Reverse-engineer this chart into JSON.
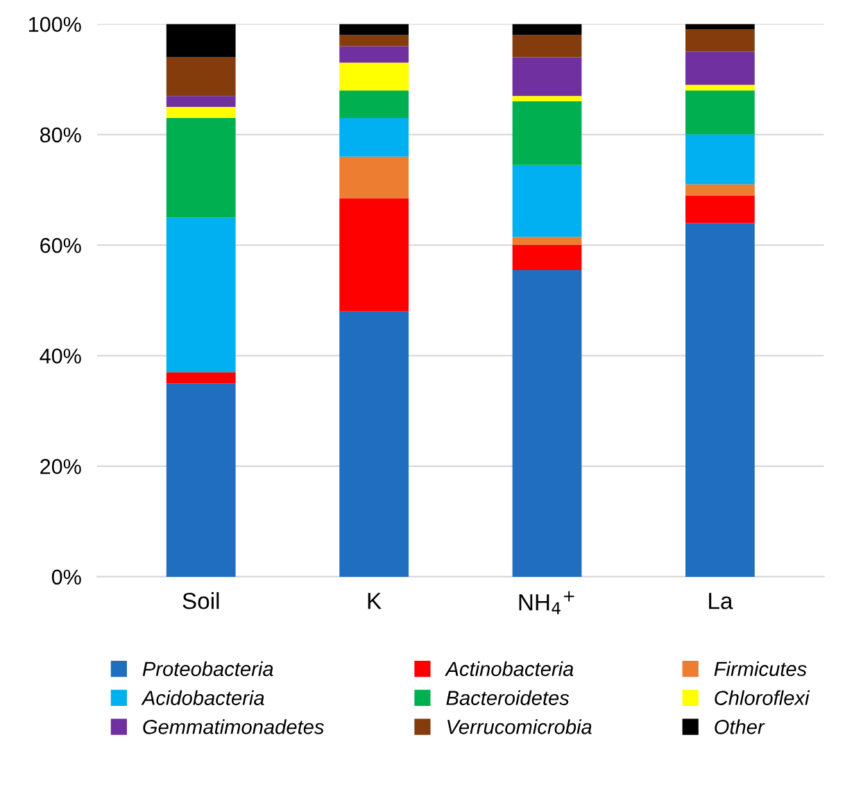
{
  "chart_data": {
    "type": "bar",
    "stacked": true,
    "categories": [
      "Soil",
      "K",
      "NH$_{4}$$^{+}$",
      "La"
    ],
    "series": [
      {
        "name": "Proteobacteria",
        "color": "#1f6ebf",
        "values": [
          35,
          48,
          55.5,
          64
        ]
      },
      {
        "name": "Actinobacteria",
        "color": "#ff0000",
        "values": [
          2,
          20.5,
          4.5,
          5
        ]
      },
      {
        "name": "Firmicutes",
        "color": "#ed7d31",
        "values": [
          0,
          7.5,
          1.5,
          2
        ]
      },
      {
        "name": "Acidobacteria",
        "color": "#00b0f0",
        "values": [
          28,
          7,
          13,
          9
        ]
      },
      {
        "name": "Bacteroidetes",
        "color": "#00b050",
        "values": [
          18,
          5,
          11.5,
          8
        ]
      },
      {
        "name": "Chloroflexi",
        "color": "#ffff00",
        "values": [
          2,
          5,
          1,
          1
        ]
      },
      {
        "name": "Gemmatimonadetes",
        "color": "#7030a0",
        "values": [
          2,
          3,
          7,
          6
        ]
      },
      {
        "name": "Verrucomicrobia",
        "color": "#843c0c",
        "values": [
          7,
          2,
          4,
          4
        ]
      },
      {
        "name": "Other",
        "color": "#000000",
        "values": [
          6,
          2,
          2,
          1
        ]
      }
    ],
    "ylim": [
      0,
      100
    ],
    "yticks": [
      {
        "value": 0,
        "label": "0%"
      },
      {
        "value": 20,
        "label": "20%"
      },
      {
        "value": 40,
        "label": "40%"
      },
      {
        "value": 60,
        "label": "60%"
      },
      {
        "value": 80,
        "label": "80%"
      },
      {
        "value": 100,
        "label": "100%"
      }
    ],
    "grid": "y",
    "legend": "bottom"
  }
}
